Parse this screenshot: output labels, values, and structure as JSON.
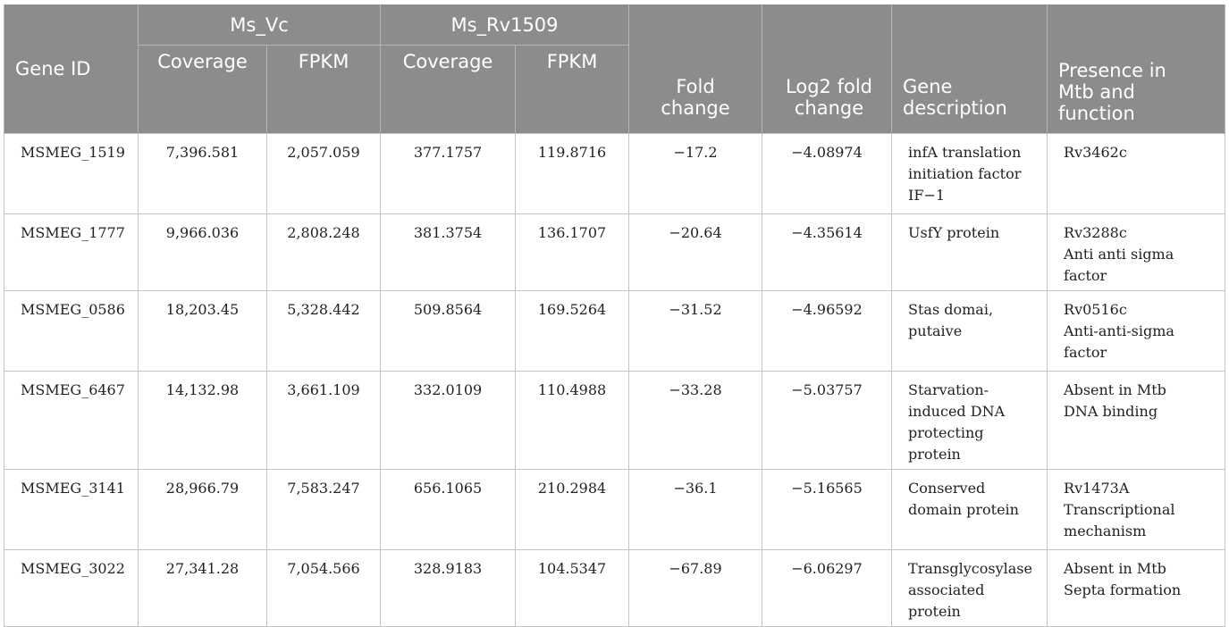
{
  "headers": {
    "gene_id": "Gene ID",
    "group_vc": "Ms_Vc",
    "group_rv": "Ms_Rv1509",
    "coverage": "Coverage",
    "fpkm": "FPKM",
    "fold_change": "Fold change",
    "log2_fold_change": "Log2 fold change",
    "gene_description": "Gene description",
    "presence": "Presence in Mtb and function"
  },
  "rows": [
    {
      "gene_id": "MSMEG_1519",
      "vc_coverage": "7,396.581",
      "vc_fpkm": "2,057.059",
      "rv_coverage": "377.1757",
      "rv_fpkm": "119.8716",
      "fold_change": "−17.2",
      "log2_fold_change": "−4.08974",
      "description": [
        "infA translation",
        "initiation factor",
        "IF−1"
      ],
      "presence": [
        "Rv3462c"
      ]
    },
    {
      "gene_id": "MSMEG_1777",
      "vc_coverage": "9,966.036",
      "vc_fpkm": "2,808.248",
      "rv_coverage": "381.3754",
      "rv_fpkm": "136.1707",
      "fold_change": "−20.64",
      "log2_fold_change": "−4.35614",
      "description": [
        "UsfY protein"
      ],
      "presence": [
        "Rv3288c",
        "Anti anti sigma factor"
      ]
    },
    {
      "gene_id": "MSMEG_0586",
      "vc_coverage": "18,203.45",
      "vc_fpkm": "5,328.442",
      "rv_coverage": "509.8564",
      "rv_fpkm": "169.5264",
      "fold_change": "−31.52",
      "log2_fold_change": "−4.96592",
      "description": [
        "Stas domai,",
        "putaive"
      ],
      "presence": [
        "Rv0516c",
        "Anti-anti-sigma",
        "factor"
      ]
    },
    {
      "gene_id": "MSMEG_6467",
      "vc_coverage": "14,132.98",
      "vc_fpkm": "3,661.109",
      "rv_coverage": "332.0109",
      "rv_fpkm": "110.4988",
      "fold_change": "−33.28",
      "log2_fold_change": "−5.03757",
      "description": [
        "Starvation-",
        "induced DNA",
        "protecting protein"
      ],
      "presence": [
        "Absent in Mtb",
        "DNA binding"
      ]
    },
    {
      "gene_id": "MSMEG_3141",
      "vc_coverage": "28,966.79",
      "vc_fpkm": "7,583.247",
      "rv_coverage": "656.1065",
      "rv_fpkm": "210.2984",
      "fold_change": "−36.1",
      "log2_fold_change": "−5.16565",
      "description": [
        "Conserved",
        "domain protein"
      ],
      "presence": [
        "Rv1473A",
        "Transcriptional",
        "mechanism"
      ]
    },
    {
      "gene_id": "MSMEG_3022",
      "vc_coverage": "27,341.28",
      "vc_fpkm": "7,054.566",
      "rv_coverage": "328.9183",
      "rv_fpkm": "104.5347",
      "fold_change": "−67.89",
      "log2_fold_change": "−6.06297",
      "description": [
        "Transglycosylase",
        "associated protein"
      ],
      "presence": [
        "Absent in Mtb",
        "Septa formation"
      ]
    }
  ]
}
